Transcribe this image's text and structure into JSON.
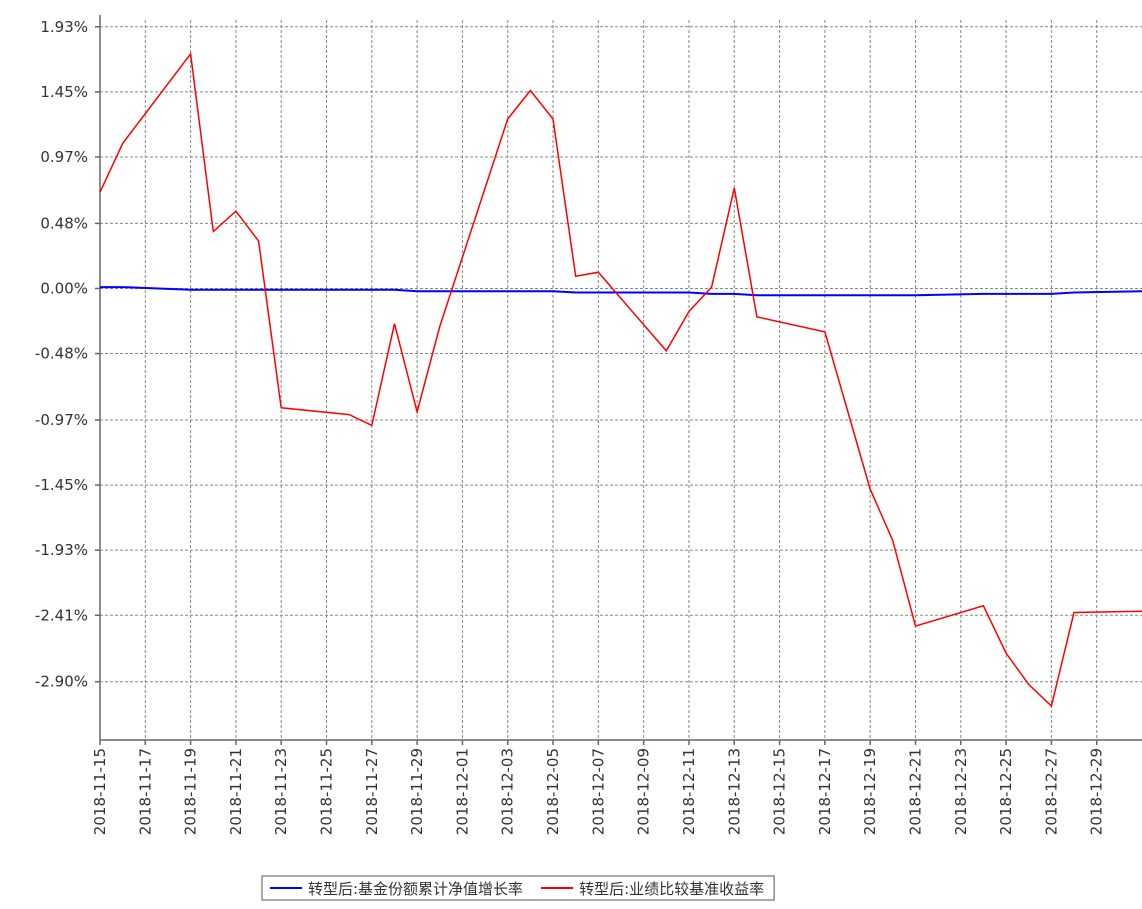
{
  "chart_data": {
    "type": "line",
    "x": [
      "2018-11-15",
      "2018-11-16",
      "2018-11-19",
      "2018-11-20",
      "2018-11-21",
      "2018-11-22",
      "2018-11-23",
      "2018-11-26",
      "2018-11-27",
      "2018-11-28",
      "2018-11-29",
      "2018-11-30",
      "2018-12-03",
      "2018-12-04",
      "2018-12-05",
      "2018-12-06",
      "2018-12-07",
      "2018-12-10",
      "2018-12-11",
      "2018-12-12",
      "2018-12-13",
      "2018-12-14",
      "2018-12-17",
      "2018-12-18",
      "2018-12-19",
      "2018-12-20",
      "2018-12-21",
      "2018-12-24",
      "2018-12-25",
      "2018-12-26",
      "2018-12-27",
      "2018-12-28",
      "2018-12-31"
    ],
    "series": [
      {
        "name": "转型后:基金份额累计净值增长率",
        "color": "#0000ff",
        "values": [
          0.01,
          0.01,
          -0.01,
          -0.01,
          -0.01,
          -0.01,
          -0.01,
          -0.01,
          -0.01,
          -0.01,
          -0.02,
          -0.02,
          -0.02,
          -0.02,
          -0.02,
          -0.03,
          -0.03,
          -0.03,
          -0.03,
          -0.04,
          -0.04,
          -0.05,
          -0.05,
          -0.05,
          -0.05,
          -0.05,
          -0.05,
          -0.04,
          -0.04,
          -0.04,
          -0.04,
          -0.03,
          -0.02
        ]
      },
      {
        "name": "转型后:业绩比较基准收益率",
        "color": "#ff0000",
        "values": [
          0.71,
          1.07,
          1.73,
          0.42,
          0.57,
          0.35,
          -0.88,
          -0.93,
          -1.01,
          -0.26,
          -0.91,
          -0.28,
          1.25,
          1.46,
          1.25,
          0.09,
          0.12,
          -0.46,
          -0.17,
          0.01,
          0.74,
          -0.21,
          -0.32,
          -0.9,
          -1.48,
          -1.86,
          -2.49,
          -2.34,
          -2.69,
          -2.92,
          -3.08,
          -2.39,
          -2.38
        ]
      }
    ],
    "xlim": [
      "2018-11-15",
      "2018-12-31"
    ],
    "xticks": [
      "2018-11-15",
      "2018-11-17",
      "2018-11-19",
      "2018-11-21",
      "2018-11-23",
      "2018-11-25",
      "2018-11-27",
      "2018-11-29",
      "2018-12-01",
      "2018-12-03",
      "2018-12-05",
      "2018-12-07",
      "2018-12-09",
      "2018-12-11",
      "2018-12-13",
      "2018-12-15",
      "2018-12-17",
      "2018-12-19",
      "2018-12-21",
      "2018-12-23",
      "2018-12-25",
      "2018-12-27",
      "2018-12-29"
    ],
    "ylim": [
      -3.33,
      1.98
    ],
    "yticks": [
      {
        "value": 1.93,
        "label": "1.93%"
      },
      {
        "value": 1.45,
        "label": "1.45%"
      },
      {
        "value": 0.97,
        "label": "0.97%"
      },
      {
        "value": 0.48,
        "label": "0.48%"
      },
      {
        "value": 0,
        "label": "0.00%"
      },
      {
        "value": -0.48,
        "label": "-0.48%"
      },
      {
        "value": -0.97,
        "label": "-0.97%"
      },
      {
        "value": -1.45,
        "label": "-1.45%"
      },
      {
        "value": -1.93,
        "label": "-1.93%"
      },
      {
        "value": -2.41,
        "label": "-2.41%"
      },
      {
        "value": -2.9,
        "label": "-2.90%"
      }
    ],
    "grid": true,
    "legend": "bottom"
  }
}
